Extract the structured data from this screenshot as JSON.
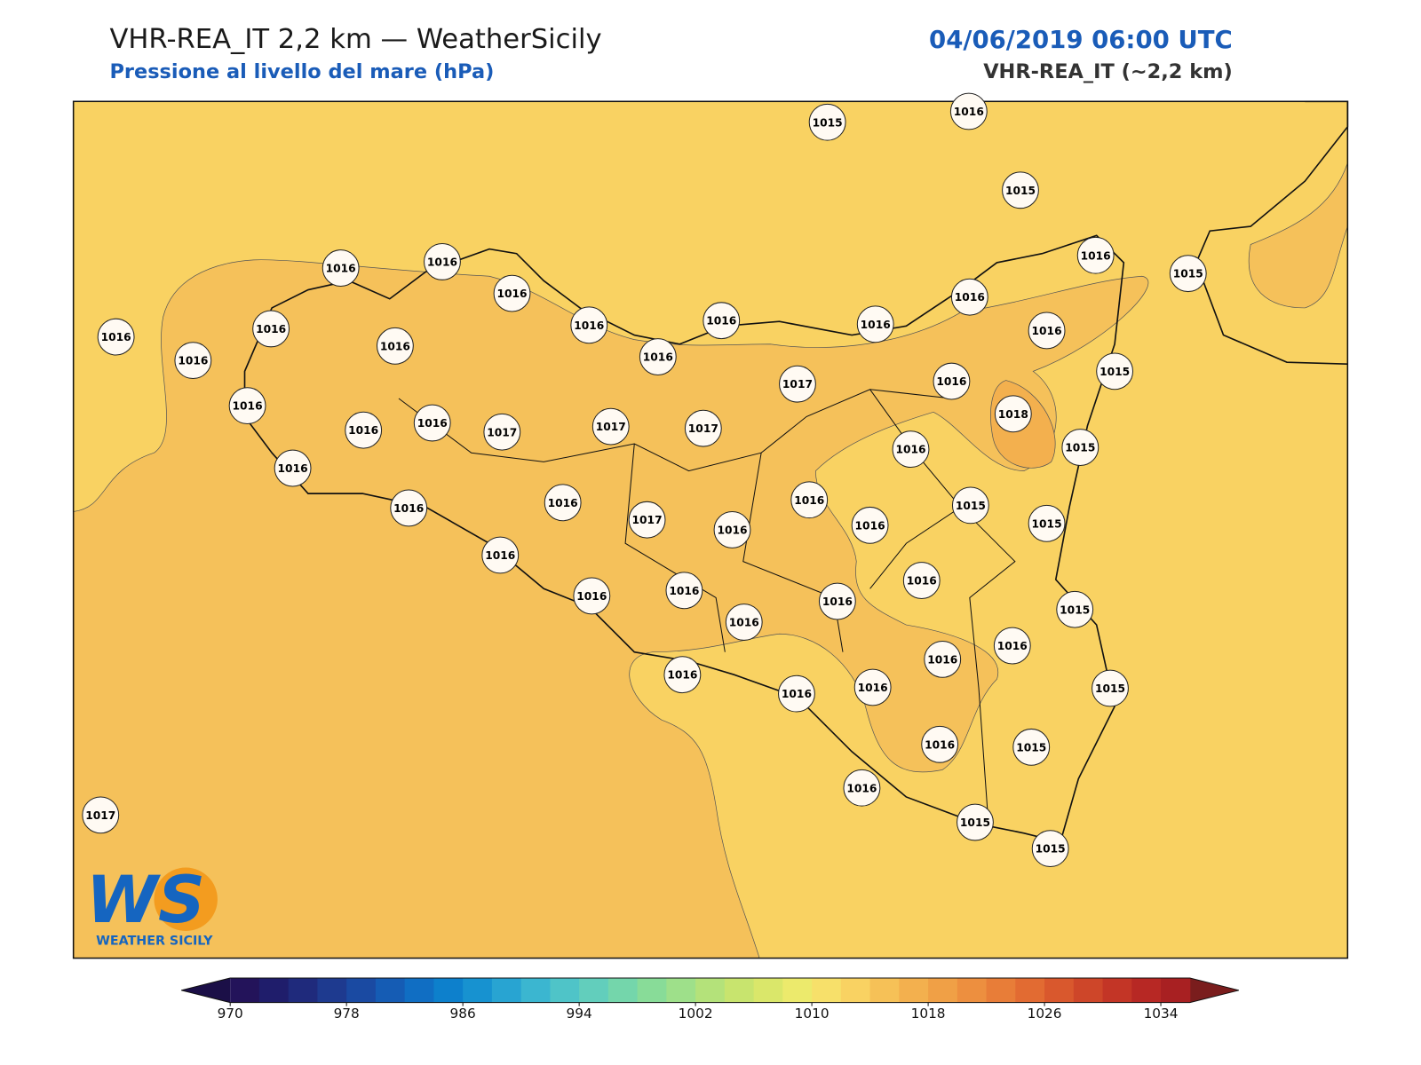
{
  "header": {
    "title": "VHR-REA_IT 2,2 km — WeatherSicily",
    "subtitle": "Pressione al livello del mare (hPa)",
    "datetime": "04/06/2019 06:00 UTC",
    "model": "VHR-REA_IT (~2,2 km)"
  },
  "logo": {
    "mark": "WS",
    "text": "WEATHER SICILY"
  },
  "stations": [
    1015,
    1016,
    1015,
    1016,
    1015,
    1016,
    1016,
    1016,
    1016,
    1016,
    1016,
    1016,
    1016,
    1015,
    1016,
    1016,
    1016,
    1016,
    1016,
    1017,
    1016,
    1018,
    1016,
    1016,
    1016,
    1017,
    1017,
    1017,
    1016,
    1015,
    1016,
    1016,
    1016,
    1016,
    1015,
    1015,
    1017,
    1016,
    1016,
    1016,
    1016,
    1016,
    1016,
    1016,
    1015,
    1016,
    1016,
    1016,
    1016,
    1016,
    1016,
    1015,
    1016,
    1015,
    1016,
    1015,
    1015,
    1017
  ],
  "colorbar": {
    "range": [
      970,
      1036
    ],
    "ticks": [
      970,
      978,
      986,
      994,
      1002,
      1010,
      1018,
      1026,
      1034
    ],
    "colors": [
      "#23135a",
      "#1f1d6b",
      "#1f2a7c",
      "#1e3a8f",
      "#1a4aa2",
      "#155cb4",
      "#106ec3",
      "#0d80cc",
      "#1792d0",
      "#28a4d2",
      "#3bb6d0",
      "#4fc4c8",
      "#62cebc",
      "#74d6ab",
      "#88dc98",
      "#9ee08a",
      "#b4e27a",
      "#c8e46e",
      "#dae76a",
      "#ecea6c",
      "#f7e06a",
      "#f9d262",
      "#f6c157",
      "#f3b04e",
      "#f0a046",
      "#ed8f3f",
      "#e87d38",
      "#e26b32",
      "#d9582d",
      "#ce4629",
      "#c33526",
      "#b72824",
      "#a82022"
    ],
    "extend_colors": [
      "#1b0f47",
      "#7a1d1d"
    ]
  }
}
